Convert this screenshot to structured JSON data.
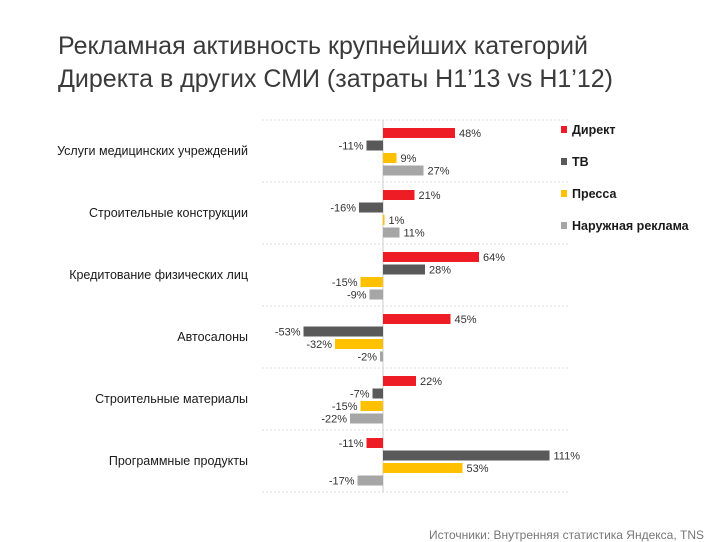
{
  "title": {
    "line1": "Рекламная активность крупнейших категорий",
    "line2": "Директа в других СМИ (затраты H1’13 vs H1’12)"
  },
  "source": "Источники: Внутренняя статистика Яндекса, TNS",
  "colors": {
    "Директ": "#ee1c25",
    "ТВ": "#595959",
    "Пресса": "#ffc000",
    "Наружная реклама": "#a6a6a6",
    "divider": "#dcdcdc",
    "axis": "#cccccc",
    "label": "#1a1a1a",
    "value_label": "#333333"
  },
  "chart_data": {
    "type": "bar",
    "orientation": "horizontal",
    "title": "Рекламная активность крупнейших категорий Директа в других СМИ (затраты H1’13 vs H1’12)",
    "categories": [
      "Услуги медицинских учреждений",
      "Строительные конструкции",
      "Кредитование физических лиц",
      "Автосалоны",
      "Строительные материалы",
      "Программные продукты"
    ],
    "series": [
      {
        "name": "Директ",
        "values": [
          48,
          21,
          64,
          45,
          22,
          -11
        ],
        "labels": [
          "48%",
          "21%",
          "64%",
          "45%",
          "22%",
          "-11%"
        ]
      },
      {
        "name": "ТВ",
        "values": [
          -11,
          -16,
          28,
          -53,
          -7,
          111
        ],
        "labels": [
          "-11%",
          "-16%",
          "28%",
          "-53%",
          "-7%",
          "111%"
        ]
      },
      {
        "name": "Пресса",
        "values": [
          9,
          1,
          -15,
          -32,
          -15,
          53
        ],
        "labels": [
          "9%",
          "1%",
          "-15%",
          "-32%",
          "-15%",
          "53%"
        ]
      },
      {
        "name": "Наружная реклама",
        "values": [
          27,
          11,
          -9,
          -2,
          -22,
          -17
        ],
        "labels": [
          "27%",
          "11%",
          "-9%",
          "-2%",
          "-22%",
          "-17%"
        ]
      }
    ],
    "xlim": [
      -60,
      120
    ],
    "xlabel": "",
    "ylabel": "",
    "grid": false,
    "legend_position": "top-right",
    "unit": "%"
  }
}
